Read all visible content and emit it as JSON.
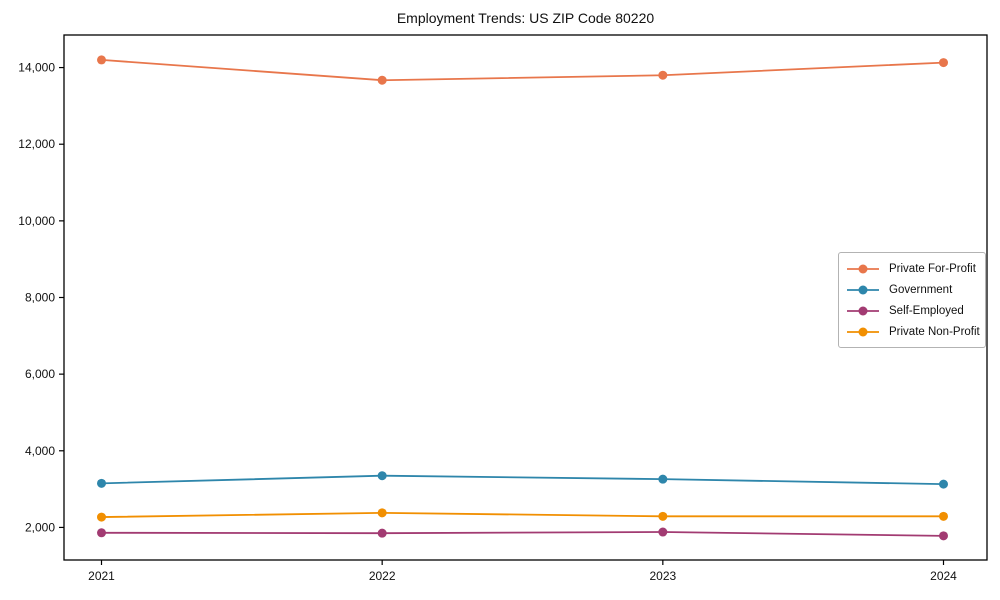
{
  "title": "Employment Trends: US ZIP Code 80220",
  "chart_data": {
    "type": "line",
    "title": "Employment Trends: US ZIP Code 80220",
    "x": [
      "2021",
      "2022",
      "2023",
      "2024"
    ],
    "series": [
      {
        "name": "Private For-Profit",
        "color": "#e8764b",
        "values": [
          14200,
          13670,
          13800,
          14130
        ]
      },
      {
        "name": "Government",
        "color": "#2e86ab",
        "values": [
          3150,
          3350,
          3260,
          3130
        ]
      },
      {
        "name": "Self-Employed",
        "color": "#a23b72",
        "values": [
          1860,
          1850,
          1880,
          1780
        ]
      },
      {
        "name": "Private Non-Profit",
        "color": "#f18f01",
        "values": [
          2270,
          2380,
          2290,
          2290
        ]
      }
    ],
    "xlabel": "",
    "ylabel": "",
    "ylim": [
      1150,
      14850
    ],
    "yticks": [
      2000,
      4000,
      6000,
      8000,
      10000,
      12000,
      14000
    ],
    "grid": false,
    "legend_position": "center-right",
    "marker": "circle",
    "background_color": "#ffffff",
    "axis_color": "#000000"
  }
}
